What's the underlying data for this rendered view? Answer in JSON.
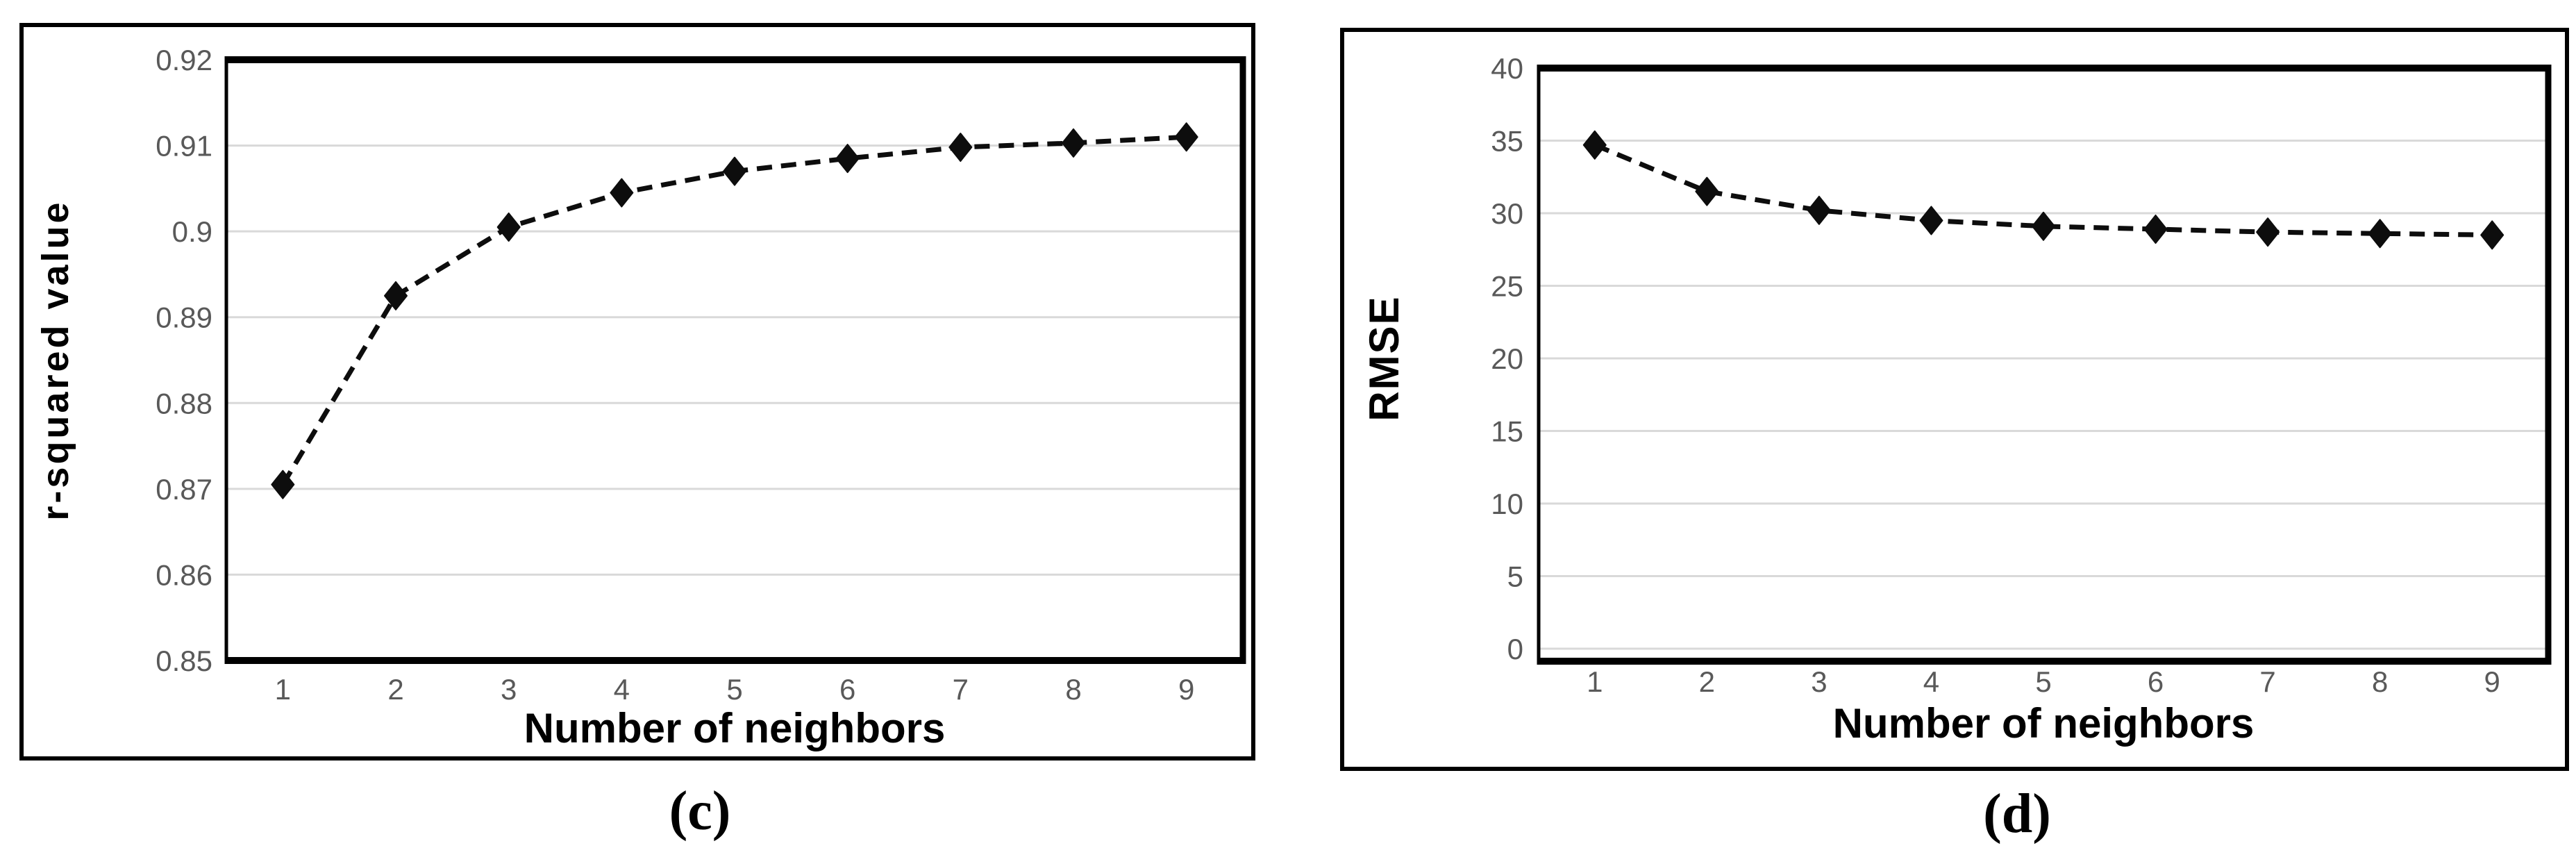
{
  "figure": {
    "background": "#ffffff",
    "panel_border_color": "#000000"
  },
  "colors": {
    "gridline": "#d9d9d9",
    "tick_label": "#595959",
    "axis_title": "#000000",
    "series_line": "#0d0d0d",
    "marker_fill": "#0d0d0d",
    "frame": "#000000"
  },
  "chart_data": [
    {
      "id": "c",
      "type": "line",
      "caption": "(c)",
      "xlabel": "Number of neighbors",
      "ylabel": "r-squared value",
      "categories": [
        "1",
        "2",
        "3",
        "4",
        "5",
        "6",
        "7",
        "8",
        "9"
      ],
      "series": [
        {
          "name": "r-squared",
          "values": [
            0.8705,
            0.8925,
            0.9005,
            0.9045,
            0.907,
            0.9085,
            0.9098,
            0.9103,
            0.911
          ]
        }
      ],
      "ylim": [
        0.85,
        0.92
      ],
      "ytick_step": 0.01,
      "ytick_labels": [
        "0.85",
        "0.86",
        "0.87",
        "0.88",
        "0.89",
        "0.9",
        "0.91",
        "0.92"
      ],
      "grid": true,
      "legend": "none",
      "line_style": "dashed",
      "marker": "diamond",
      "frame_gap_below_min": false
    },
    {
      "id": "d",
      "type": "line",
      "caption": "(d)",
      "xlabel": "Number of neighbors",
      "ylabel": "RMSE",
      "categories": [
        "1",
        "2",
        "3",
        "4",
        "5",
        "6",
        "7",
        "8",
        "9"
      ],
      "series": [
        {
          "name": "RMSE",
          "values": [
            34.7,
            31.5,
            30.2,
            29.5,
            29.1,
            28.9,
            28.7,
            28.6,
            28.5
          ]
        }
      ],
      "ylim": [
        0,
        40
      ],
      "ytick_step": 5,
      "ytick_labels": [
        "0",
        "5",
        "10",
        "15",
        "20",
        "25",
        "30",
        "35",
        "40"
      ],
      "grid": true,
      "legend": "none",
      "line_style": "dashed",
      "marker": "diamond",
      "frame_gap_below_min": true
    }
  ]
}
